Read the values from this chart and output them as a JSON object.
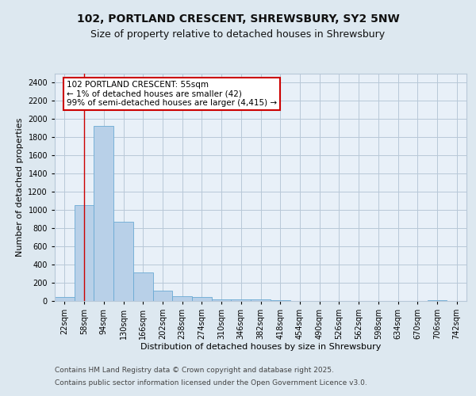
{
  "title1": "102, PORTLAND CRESCENT, SHREWSBURY, SY2 5NW",
  "title2": "Size of property relative to detached houses in Shrewsbury",
  "xlabel": "Distribution of detached houses by size in Shrewsbury",
  "ylabel": "Number of detached properties",
  "footer1": "Contains HM Land Registry data © Crown copyright and database right 2025.",
  "footer2": "Contains public sector information licensed under the Open Government Licence v3.0.",
  "annotation_title": "102 PORTLAND CRESCENT: 55sqm",
  "annotation_line1": "← 1% of detached houses are smaller (42)",
  "annotation_line2": "99% of semi-detached houses are larger (4,415) →",
  "bin_labels": [
    "22sqm",
    "58sqm",
    "94sqm",
    "130sqm",
    "166sqm",
    "202sqm",
    "238sqm",
    "274sqm",
    "310sqm",
    "346sqm",
    "382sqm",
    "418sqm",
    "454sqm",
    "490sqm",
    "526sqm",
    "562sqm",
    "598sqm",
    "634sqm",
    "670sqm",
    "706sqm",
    "742sqm"
  ],
  "bar_values": [
    40,
    1050,
    1920,
    870,
    310,
    110,
    55,
    45,
    20,
    20,
    15,
    5,
    0,
    0,
    0,
    0,
    0,
    0,
    0,
    5,
    0
  ],
  "bar_color": "#b8d0e8",
  "bar_edge_color": "#6aaad4",
  "red_line_x": 1.0,
  "ylim": [
    0,
    2500
  ],
  "yticks": [
    0,
    200,
    400,
    600,
    800,
    1000,
    1200,
    1400,
    1600,
    1800,
    2000,
    2200,
    2400
  ],
  "bg_color": "#dde8f0",
  "plot_bg_color": "#e8f0f8",
  "grid_color": "#b8c8d8",
  "annotation_box_color": "#ffffff",
  "annotation_box_edge": "#cc0000",
  "title_fontsize": 10,
  "subtitle_fontsize": 9,
  "axis_label_fontsize": 8,
  "tick_fontsize": 7,
  "annotation_fontsize": 7.5,
  "footer_fontsize": 6.5
}
